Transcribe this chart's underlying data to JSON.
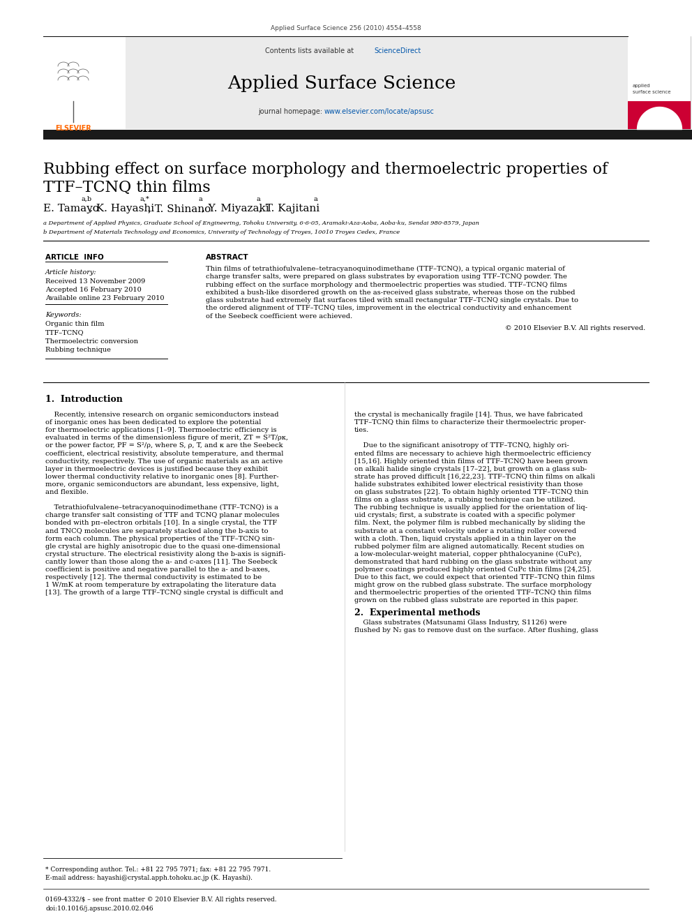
{
  "journal_ref": "Applied Surface Science 256 (2010) 4554–4558",
  "contents_line": "Contents lists available at ",
  "sciencedirect": "ScienceDirect",
  "journal_name": "Applied Surface Science",
  "journal_homepage_prefix": "journal homepage: ",
  "journal_homepage_link": "www.elsevier.com/locate/apsusc",
  "title_line1": "Rubbing effect on surface morphology and thermoelectric properties of",
  "title_line2": "TTF–TCNQ thin films",
  "author_parts": [
    {
      "text": "E. Tamayo",
      "fontsize": 11,
      "style": "normal"
    },
    {
      "text": "a,b",
      "fontsize": 7,
      "style": "super"
    },
    {
      "text": ", K. Hayashi",
      "fontsize": 11,
      "style": "normal"
    },
    {
      "text": "a,*",
      "fontsize": 7,
      "style": "super"
    },
    {
      "text": ", T. Shinano",
      "fontsize": 11,
      "style": "normal"
    },
    {
      "text": "a",
      "fontsize": 7,
      "style": "super"
    },
    {
      "text": ", Y. Miyazaki",
      "fontsize": 11,
      "style": "normal"
    },
    {
      "text": "a",
      "fontsize": 7,
      "style": "super"
    },
    {
      "text": ", T. Kajitani",
      "fontsize": 11,
      "style": "normal"
    },
    {
      "text": "a",
      "fontsize": 7,
      "style": "super"
    }
  ],
  "affil_a": "a Department of Applied Physics, Graduate School of Engineering, Tohoku University, 6-6-05, Aramaki-Aza-Aoba, Aoba-ku, Sendai 980-8579, Japan",
  "affil_b": "b Department of Materials Technology and Economics, University of Technology of Troyes, 10010 Troyes Cedex, France",
  "article_info_header": "ARTICLE  INFO",
  "abstract_header": "ABSTRACT",
  "article_history_label": "Article history:",
  "received": "Received 13 November 2009",
  "accepted": "Accepted 16 February 2010",
  "available": "Available online 23 February 2010",
  "keywords_label": "Keywords:",
  "keywords": [
    "Organic thin film",
    "TTF–TCNQ",
    "Thermoelectric conversion",
    "Rubbing technique"
  ],
  "abstract_lines": [
    "Thin films of tetrathiofulvalene–tetracyanoquinodimethane (TTF–TCNQ), a typical organic material of",
    "charge transfer salts, were prepared on glass substrates by evaporation using TTF–TCNQ powder. The",
    "rubbing effect on the surface morphology and thermoelectric properties was studied. TTF–TCNQ films",
    "exhibited a bush-like disordered growth on the as-received glass substrate, whereas those on the rubbed",
    "glass substrate had extremely flat surfaces tiled with small rectangular TTF–TCNQ single crystals. Due to",
    "the ordered alignment of TTF–TCNQ tiles, improvement in the electrical conductivity and enhancement",
    "of the Seebeck coefficient were achieved."
  ],
  "copyright": "© 2010 Elsevier B.V. All rights reserved.",
  "section1_title": "1.  Introduction",
  "body_col1_lines": [
    "    Recently, intensive research on organic semiconductors instead",
    "of inorganic ones has been dedicated to explore the potential",
    "for thermoelectric applications [1–9]. Thermoelectric efficiency is",
    "evaluated in terms of the dimensionless figure of merit, ZT = S²T/ρκ,",
    "or the power factor, PF = S²/ρ, where S, ρ, T, and κ are the Seebeck",
    "coefficient, electrical resistivity, absolute temperature, and thermal",
    "conductivity, respectively. The use of organic materials as an active",
    "layer in thermoelectric devices is justified because they exhibit",
    "lower thermal conductivity relative to inorganic ones [8]. Further-",
    "more, organic semiconductors are abundant, less expensive, light,",
    "and flexible.",
    "",
    "    Tetrathiofulvalene–tetracyanoquinodimethane (TTF–TCNQ) is a",
    "charge transfer salt consisting of TTF and TCNQ planar molecules",
    "bonded with pπ–electron orbitals [10]. In a single crystal, the TTF",
    "and TNCQ molecules are separately stacked along the b-axis to",
    "form each column. The physical properties of the TTF–TCNQ sin-",
    "gle crystal are highly anisotropic due to the quasi one-dimensional",
    "crystal structure. The electrical resistivity along the b-axis is signifi-",
    "cantly lower than those along the a- and c-axes [11]. The Seebeck",
    "coefficient is positive and negative parallel to the a- and b-axes,",
    "respectively [12]. The thermal conductivity is estimated to be",
    "1 W/mK at room temperature by extrapolating the literature data",
    "[13]. The growth of a large TTF–TCNQ single crystal is difficult and"
  ],
  "body_col2_lines": [
    "the crystal is mechanically fragile [14]. Thus, we have fabricated",
    "TTF–TCNQ thin films to characterize their thermoelectric proper-",
    "ties.",
    "",
    "    Due to the significant anisotropy of TTF–TCNQ, highly ori-",
    "ented films are necessary to achieve high thermoelectric efficiency",
    "[15,16]. Highly oriented thin films of TTF–TCNQ have been grown",
    "on alkali halide single crystals [17–22], but growth on a glass sub-",
    "strate has proved difficult [16,22,23]. TTF–TCNQ thin films on alkali",
    "halide substrates exhibited lower electrical resistivity than those",
    "on glass substrates [22]. To obtain highly oriented TTF–TCNQ thin",
    "films on a glass substrate, a rubbing technique can be utilized.",
    "The rubbing technique is usually applied for the orientation of liq-",
    "uid crystals; first, a substrate is coated with a specific polymer",
    "film. Next, the polymer film is rubbed mechanically by sliding the",
    "substrate at a constant velocity under a rotating roller covered",
    "with a cloth. Then, liquid crystals applied in a thin layer on the",
    "rubbed polymer film are aligned automatically. Recent studies on",
    "a low-molecular-weight material, copper phthalocyanine (CuPc),",
    "demonstrated that hard rubbing on the glass substrate without any",
    "polymer coatings produced highly oriented CuPc thin films [24,25].",
    "Due to this fact, we could expect that oriented TTF–TCNQ thin films",
    "might grow on the rubbed glass substrate. The surface morphology",
    "and thermoelectric properties of the oriented TTF–TCNQ thin films",
    "grown on the rubbed glass substrate are reported in this paper."
  ],
  "section2_title": "2.  Experimental methods",
  "section2_lines": [
    "    Glass substrates (Matsunami Glass Industry, S1126) were",
    "flushed by N₂ gas to remove dust on the surface. After flushing, glass"
  ],
  "footnote_star": "* Corresponding author. Tel.: +81 22 795 7971; fax: +81 22 795 7971.",
  "footnote_email": "E-mail address: hayashi@crystal.apph.tohoku.ac.jp (K. Hayashi).",
  "footer_issn": "0169-4332/$ – see front matter © 2010 Elsevier B.V. All rights reserved.",
  "footer_doi": "doi:10.1016/j.apsusc.2010.02.046",
  "bg_header_color": "#ebebeb",
  "elsevier_orange": "#FF6600",
  "link_blue": "#0055AA",
  "dark_bar_color": "#1a1a1a"
}
